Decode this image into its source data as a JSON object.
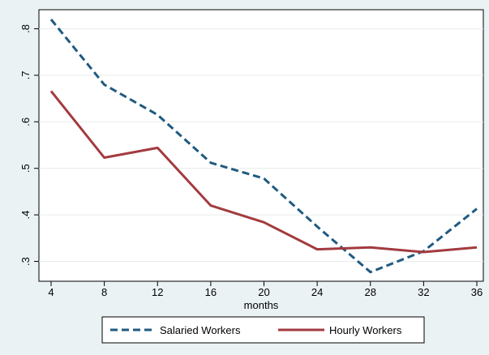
{
  "chart_data": {
    "type": "line",
    "title": "",
    "xlabel": "months",
    "ylabel": "",
    "x": [
      4,
      8,
      12,
      16,
      20,
      24,
      28,
      32,
      36
    ],
    "x_ticks": [
      "4",
      "8",
      "12",
      "16",
      "20",
      "24",
      "28",
      "32",
      "36"
    ],
    "y_ticks": [
      {
        "value": 0.3,
        "label": ".3"
      },
      {
        "value": 0.4,
        "label": ".4"
      },
      {
        "value": 0.5,
        "label": ".5"
      },
      {
        "value": 0.6,
        "label": ".6"
      },
      {
        "value": 0.7,
        "label": ".7"
      },
      {
        "value": 0.8,
        "label": ".8"
      }
    ],
    "xlim": [
      4,
      36
    ],
    "ylim": [
      0.28,
      0.82
    ],
    "grid": true,
    "legend_position": "bottom",
    "series": [
      {
        "name": "Salaried Workers",
        "color": "#1f5a80",
        "style": "dashed",
        "values": [
          0.82,
          0.68,
          0.615,
          0.512,
          0.478,
          0.375,
          0.277,
          0.322,
          0.413
        ]
      },
      {
        "name": "Hourly Workers",
        "color": "#a33a3f",
        "style": "solid",
        "values": [
          0.666,
          0.523,
          0.544,
          0.42,
          0.384,
          0.326,
          0.33,
          0.32,
          0.33
        ]
      }
    ]
  }
}
